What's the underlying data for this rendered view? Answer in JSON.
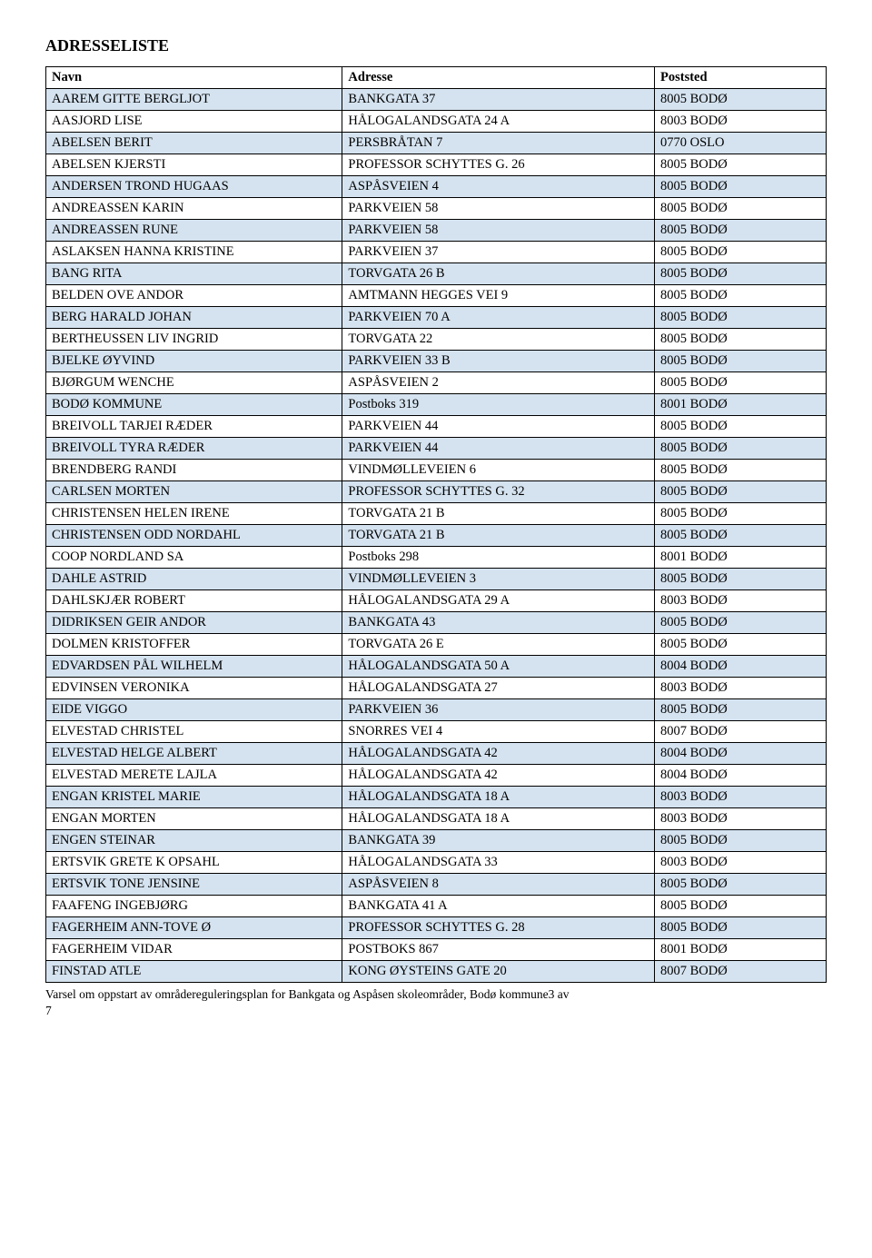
{
  "title": "ADRESSELISTE",
  "columns": [
    "Navn",
    "Adresse",
    "Poststed"
  ],
  "rows": [
    [
      "AAREM GITTE BERGLJOT",
      "BANKGATA 37",
      "8005 BODØ"
    ],
    [
      "AASJORD LISE",
      "HÅLOGALANDSGATA 24 A",
      "8003 BODØ"
    ],
    [
      "ABELSEN BERIT",
      "PERSBRÅTAN 7",
      "0770 OSLO"
    ],
    [
      "ABELSEN KJERSTI",
      "PROFESSOR SCHYTTES G. 26",
      "8005 BODØ"
    ],
    [
      "ANDERSEN TROND HUGAAS",
      "ASPÅSVEIEN 4",
      "8005 BODØ"
    ],
    [
      "ANDREASSEN KARIN",
      "PARKVEIEN 58",
      "8005 BODØ"
    ],
    [
      "ANDREASSEN RUNE",
      "PARKVEIEN 58",
      "8005 BODØ"
    ],
    [
      "ASLAKSEN HANNA KRISTINE",
      "PARKVEIEN 37",
      "8005 BODØ"
    ],
    [
      "BANG RITA",
      "TORVGATA 26 B",
      "8005 BODØ"
    ],
    [
      "BELDEN OVE ANDOR",
      "AMTMANN HEGGES VEI 9",
      "8005 BODØ"
    ],
    [
      "BERG HARALD JOHAN",
      "PARKVEIEN 70 A",
      "8005 BODØ"
    ],
    [
      "BERTHEUSSEN LIV INGRID",
      "TORVGATA 22",
      "8005 BODØ"
    ],
    [
      "BJELKE ØYVIND",
      "PARKVEIEN 33 B",
      "8005 BODØ"
    ],
    [
      "BJØRGUM WENCHE",
      "ASPÅSVEIEN 2",
      "8005 BODØ"
    ],
    [
      "BODØ KOMMUNE",
      "Postboks 319",
      "8001 BODØ"
    ],
    [
      "BREIVOLL TARJEI RÆDER",
      "PARKVEIEN 44",
      "8005 BODØ"
    ],
    [
      "BREIVOLL TYRA RÆDER",
      "PARKVEIEN 44",
      "8005 BODØ"
    ],
    [
      "BRENDBERG RANDI",
      "VINDMØLLEVEIEN 6",
      "8005 BODØ"
    ],
    [
      "CARLSEN MORTEN",
      "PROFESSOR SCHYTTES G. 32",
      "8005 BODØ"
    ],
    [
      "CHRISTENSEN HELEN IRENE",
      "TORVGATA 21 B",
      "8005 BODØ"
    ],
    [
      "CHRISTENSEN ODD NORDAHL",
      "TORVGATA 21 B",
      "8005 BODØ"
    ],
    [
      "COOP NORDLAND SA",
      "Postboks 298",
      "8001 BODØ"
    ],
    [
      "DAHLE ASTRID",
      "VINDMØLLEVEIEN 3",
      "8005 BODØ"
    ],
    [
      "DAHLSKJÆR ROBERT",
      "HÅLOGALANDSGATA 29 A",
      "8003 BODØ"
    ],
    [
      "DIDRIKSEN GEIR ANDOR",
      "BANKGATA 43",
      "8005 BODØ"
    ],
    [
      "DOLMEN KRISTOFFER",
      "TORVGATA 26 E",
      "8005 BODØ"
    ],
    [
      "EDVARDSEN PÅL WILHELM",
      "HÅLOGALANDSGATA 50 A",
      "8004 BODØ"
    ],
    [
      "EDVINSEN VERONIKA",
      "HÅLOGALANDSGATA 27",
      "8003 BODØ"
    ],
    [
      "EIDE VIGGO",
      "PARKVEIEN 36",
      "8005 BODØ"
    ],
    [
      "ELVESTAD CHRISTEL",
      "SNORRES VEI 4",
      "8007 BODØ"
    ],
    [
      "ELVESTAD HELGE ALBERT",
      "HÅLOGALANDSGATA 42",
      "8004 BODØ"
    ],
    [
      "ELVESTAD MERETE LAJLA",
      "HÅLOGALANDSGATA 42",
      "8004 BODØ"
    ],
    [
      "ENGAN KRISTEL MARIE",
      "HÅLOGALANDSGATA 18 A",
      "8003 BODØ"
    ],
    [
      "ENGAN MORTEN",
      "HÅLOGALANDSGATA 18 A",
      "8003 BODØ"
    ],
    [
      "ENGEN STEINAR",
      "BANKGATA 39",
      "8005 BODØ"
    ],
    [
      "ERTSVIK GRETE K OPSAHL",
      "HÅLOGALANDSGATA 33",
      "8003 BODØ"
    ],
    [
      "ERTSVIK TONE JENSINE",
      "ASPÅSVEIEN 8",
      "8005 BODØ"
    ],
    [
      "FAAFENG INGEBJØRG",
      "BANKGATA 41 A",
      "8005 BODØ"
    ],
    [
      "FAGERHEIM ANN-TOVE Ø",
      "PROFESSOR SCHYTTES G. 28",
      "8005 BODØ"
    ],
    [
      "FAGERHEIM VIDAR",
      "POSTBOKS 867",
      "8001 BODØ"
    ],
    [
      "FINSTAD ATLE",
      "KONG ØYSTEINS GATE 20",
      "8007 BODØ"
    ]
  ],
  "footer_line1": "Varsel om oppstart av områdereguleringsplan for Bankgata og Aspåsen skoleområder, Bodø kommune3 av",
  "footer_line2": "7"
}
